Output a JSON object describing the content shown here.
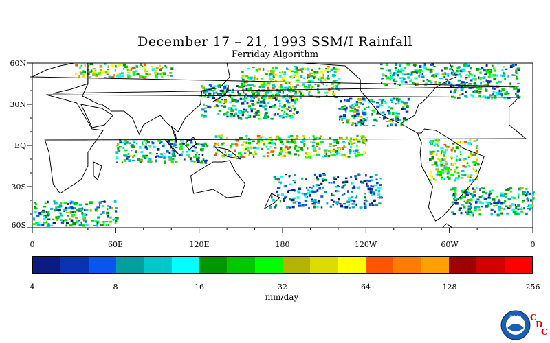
{
  "title": "December 17 – 21, 1993 SSM/I Rainfall",
  "subtitle": "Ferriday Algorithm",
  "lat_labels": [
    "60N",
    "30N",
    "EQ",
    "30S",
    "60S"
  ],
  "lon_labels": [
    "0",
    "60E",
    "120E",
    "180",
    "120W",
    "60W",
    "0"
  ],
  "colorbar": {
    "colors": [
      "#0a1c7d",
      "#0a32b4",
      "#0a55f0",
      "#00a0a0",
      "#00c8c8",
      "#00ffff",
      "#009600",
      "#00c800",
      "#00ff00",
      "#b4b400",
      "#dcdc00",
      "#ffff00",
      "#ff5500",
      "#ff7d00",
      "#ffa000",
      "#a00000",
      "#d20000",
      "#ff0000"
    ],
    "tick_labels": [
      "4",
      "8",
      "16",
      "32",
      "64",
      "128",
      "256"
    ],
    "units": "mm/day"
  },
  "logo": {
    "text": "NOAA",
    "cdc_letters": [
      "C",
      "D",
      "C"
    ]
  },
  "chart_data": {
    "type": "heatmap",
    "title": "December 17 – 21, 1993 SSM/I Rainfall",
    "subtitle": "Ferriday Algorithm",
    "x_range_deg_east": [
      0,
      360
    ],
    "y_range_deg_lat": [
      -60,
      60
    ],
    "x_tick_labels": [
      "0",
      "60E",
      "120E",
      "180",
      "120W",
      "60W",
      "0"
    ],
    "y_tick_labels": [
      "60N",
      "30N",
      "EQ",
      "30S",
      "60S"
    ],
    "color_scale": "log2",
    "color_levels_mm_per_day": [
      4,
      8,
      16,
      32,
      64,
      128,
      256
    ],
    "units": "mm/day",
    "rain_bands": [
      {
        "lon": [
          130,
          240
        ],
        "lat": [
          -8,
          8
        ],
        "intensity": 32
      },
      {
        "lon": [
          60,
          125
        ],
        "lat": [
          -12,
          5
        ],
        "intensity": 16
      },
      {
        "lon": [
          120,
          190
        ],
        "lat": [
          20,
          45
        ],
        "intensity": 16
      },
      {
        "lon": [
          150,
          220
        ],
        "lat": [
          35,
          58
        ],
        "intensity": 32
      },
      {
        "lon": [
          220,
          270
        ],
        "lat": [
          15,
          35
        ],
        "intensity": 16
      },
      {
        "lon": [
          285,
          320
        ],
        "lat": [
          -25,
          5
        ],
        "intensity": 32
      },
      {
        "lon": [
          300,
          360
        ],
        "lat": [
          -50,
          -30
        ],
        "intensity": 16
      },
      {
        "lon": [
          0,
          60
        ],
        "lat": [
          -58,
          -40
        ],
        "intensity": 16
      },
      {
        "lon": [
          170,
          250
        ],
        "lat": [
          -45,
          -20
        ],
        "intensity": 8
      },
      {
        "lon": [
          300,
          350
        ],
        "lat": [
          35,
          60
        ],
        "intensity": 16
      },
      {
        "lon": [
          30,
          100
        ],
        "lat": [
          50,
          60
        ],
        "intensity": 32
      },
      {
        "lon": [
          250,
          300
        ],
        "lat": [
          45,
          60
        ],
        "intensity": 16
      }
    ]
  }
}
